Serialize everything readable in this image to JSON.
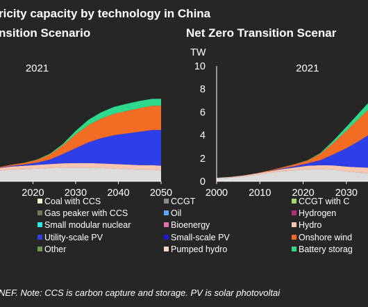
{
  "header": {
    "title_fragment": "ricity capacity by technology in China",
    "left_subtitle_fragment": "nsition Scenario",
    "right_subtitle_fragment": "Net Zero Transition Scenar"
  },
  "footer": {
    "note_fragment": "NEF.  Note: CCS is carbon capture and storage. PV is solar photovoltai"
  },
  "colors": {
    "background": "#262626",
    "coal_grey": "#dcdcdc",
    "coal_mid": "#8c8c8c",
    "hydro": "#f6c6b0",
    "utility_pv": "#2f3fe8",
    "onshore_wind": "#f26c24",
    "battery_storage": "#2ed98b",
    "green_band": "#6fae48"
  },
  "chart_data": [
    {
      "type": "area",
      "name": "left-panel",
      "subtitle": "nsition Scenario",
      "annotation": "2021",
      "x": [
        2012,
        2015,
        2018,
        2021,
        2024,
        2027,
        2030,
        2033,
        2036,
        2039,
        2042,
        2045,
        2048,
        2050
      ],
      "xticks": [
        "2020",
        "2030",
        "2040",
        "2050"
      ],
      "xtick_values": [
        2020,
        2030,
        2040,
        2050
      ],
      "xlim": [
        2011,
        2050
      ],
      "ylim": [
        0,
        10
      ],
      "series": [
        {
          "name": "Coal",
          "color": "#dcdcdc",
          "values": [
            0.9,
            1.0,
            1.05,
            1.1,
            1.15,
            1.2,
            1.2,
            1.2,
            1.15,
            1.1,
            1.05,
            1.0,
            1.0,
            0.95
          ]
        },
        {
          "name": "Hydro",
          "color": "#f6c6b0",
          "values": [
            0.25,
            0.28,
            0.3,
            0.32,
            0.34,
            0.36,
            0.37,
            0.38,
            0.39,
            0.4,
            0.4,
            0.4,
            0.4,
            0.4
          ]
        },
        {
          "name": "Utility-scale PV",
          "color": "#2f3fe8",
          "values": [
            0.02,
            0.05,
            0.1,
            0.2,
            0.4,
            0.8,
            1.3,
            1.8,
            2.2,
            2.5,
            2.7,
            2.9,
            3.05,
            3.1
          ]
        },
        {
          "name": "Onshore wind",
          "color": "#f26c24",
          "values": [
            0.05,
            0.1,
            0.15,
            0.25,
            0.45,
            0.75,
            1.2,
            1.5,
            1.7,
            1.85,
            1.95,
            2.05,
            2.1,
            2.1
          ]
        },
        {
          "name": "Battery storage",
          "color": "#2ed98b",
          "values": [
            0.0,
            0.0,
            0.01,
            0.02,
            0.05,
            0.12,
            0.3,
            0.45,
            0.55,
            0.6,
            0.62,
            0.62,
            0.6,
            0.6
          ]
        }
      ]
    },
    {
      "type": "area",
      "name": "right-panel",
      "subtitle": "Net Zero Transition Scenar",
      "annotation": "2021",
      "yunit": "TW",
      "yticks": [
        "0",
        "2",
        "4",
        "6",
        "8",
        "10"
      ],
      "ytick_values": [
        0,
        2,
        4,
        6,
        8,
        10
      ],
      "ylim": [
        0,
        10
      ],
      "xticks": [
        "2000",
        "2010",
        "2020",
        "2030"
      ],
      "xtick_values": [
        2000,
        2010,
        2020,
        2030
      ],
      "xlim": [
        2000,
        2035
      ],
      "x": [
        2000,
        2003,
        2006,
        2009,
        2012,
        2015,
        2018,
        2021,
        2024,
        2027,
        2030,
        2033,
        2035
      ],
      "series": [
        {
          "name": "Coal",
          "color": "#dcdcdc",
          "values": [
            0.25,
            0.3,
            0.4,
            0.55,
            0.7,
            0.85,
            0.95,
            1.05,
            1.05,
            1.0,
            0.85,
            0.75,
            0.7
          ]
        },
        {
          "name": "Hydro",
          "color": "#f6c6b0",
          "values": [
            0.05,
            0.07,
            0.09,
            0.12,
            0.16,
            0.2,
            0.25,
            0.3,
            0.34,
            0.38,
            0.42,
            0.46,
            0.48
          ]
        },
        {
          "name": "Utility-scale PV",
          "color": "#2f3fe8",
          "values": [
            0.0,
            0.0,
            0.0,
            0.0,
            0.01,
            0.05,
            0.1,
            0.2,
            0.45,
            0.95,
            1.6,
            2.3,
            2.8
          ]
        },
        {
          "name": "Onshore wind",
          "color": "#f26c24",
          "values": [
            0.0,
            0.0,
            0.0,
            0.01,
            0.05,
            0.1,
            0.17,
            0.25,
            0.55,
            1.0,
            1.5,
            1.95,
            2.2
          ]
        },
        {
          "name": "Battery storage",
          "color": "#2ed98b",
          "values": [
            0.0,
            0.0,
            0.0,
            0.0,
            0.0,
            0.0,
            0.01,
            0.02,
            0.07,
            0.2,
            0.35,
            0.5,
            0.6
          ]
        }
      ]
    }
  ],
  "legend": [
    {
      "label": "Coal with CCS",
      "color": "#e8f5c8"
    },
    {
      "label": "CCGT",
      "color": "#8c8c8c"
    },
    {
      "label": "CCGT with C",
      "color": "#a6d86e"
    },
    {
      "label": "Gas peaker with CCS",
      "color": "#6f7b5a"
    },
    {
      "label": "Oil",
      "color": "#5aa8ff"
    },
    {
      "label": "Hydrogen",
      "color": "#b0307a"
    },
    {
      "label": "Small modular nuclear",
      "color": "#30e8e8"
    },
    {
      "label": "Bioenergy",
      "color": "#e070b0"
    },
    {
      "label": "Hydro",
      "color": "#f6c6b0"
    },
    {
      "label": "Utility-scale PV",
      "color": "#2f3fe8"
    },
    {
      "label": "Small-scale PV",
      "color": "#1a1ad0"
    },
    {
      "label": "Onshore wind",
      "color": "#f26c24"
    },
    {
      "label": "Other",
      "color": "#6f9a4a"
    },
    {
      "label": "Pumped hydro",
      "color": "#fbd7c9"
    },
    {
      "label": "Battery storag",
      "color": "#2ed98b"
    }
  ]
}
